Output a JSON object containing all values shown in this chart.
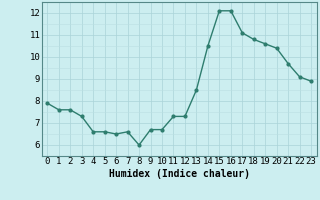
{
  "x": [
    0,
    1,
    2,
    3,
    4,
    5,
    6,
    7,
    8,
    9,
    10,
    11,
    12,
    13,
    14,
    15,
    16,
    17,
    18,
    19,
    20,
    21,
    22,
    23
  ],
  "y": [
    7.9,
    7.6,
    7.6,
    7.3,
    6.6,
    6.6,
    6.5,
    6.6,
    6.0,
    6.7,
    6.7,
    7.3,
    7.3,
    8.5,
    10.5,
    12.1,
    12.1,
    11.1,
    10.8,
    10.6,
    10.4,
    9.7,
    9.1,
    8.9
  ],
  "xlabel": "Humidex (Indice chaleur)",
  "line_color": "#2e7d6e",
  "bg_color": "#cceef0",
  "grid_color_major": "#aad4d8",
  "grid_color_minor": "#bbdfe2",
  "ylim": [
    5.5,
    12.5
  ],
  "xlim": [
    -0.5,
    23.5
  ],
  "yticks": [
    6,
    7,
    8,
    9,
    10,
    11,
    12
  ],
  "xticks": [
    0,
    1,
    2,
    3,
    4,
    5,
    6,
    7,
    8,
    9,
    10,
    11,
    12,
    13,
    14,
    15,
    16,
    17,
    18,
    19,
    20,
    21,
    22,
    23
  ],
  "xlabel_fontsize": 7,
  "tick_fontsize": 6.5,
  "spine_color": "#558888"
}
